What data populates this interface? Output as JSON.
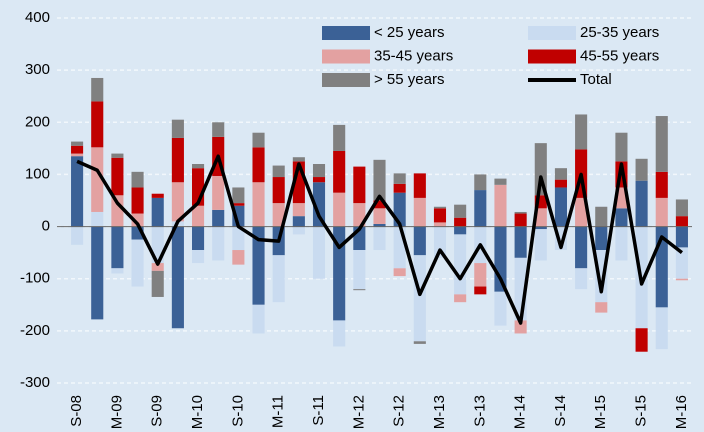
{
  "chart_data": {
    "type": "stacked-bar-line",
    "categories": [
      "S-08",
      null,
      "M-09",
      null,
      "S-09",
      null,
      "M-10",
      null,
      "S-10",
      null,
      "M-11",
      null,
      "S-11",
      null,
      "M-12",
      null,
      "S-12",
      null,
      "M-13",
      null,
      "S-13",
      null,
      "M-14",
      null,
      "S-14",
      null,
      "M-15",
      null,
      "S-15",
      null,
      "M-16"
    ],
    "series": [
      {
        "name": "< 25 years",
        "color": "#3b6196",
        "values": [
          135,
          -178,
          -80,
          -25,
          55,
          -195,
          -45,
          32,
          40,
          -150,
          -55,
          20,
          85,
          -180,
          -45,
          5,
          65,
          -55,
          0,
          -15,
          70,
          -125,
          -60,
          -5,
          75,
          -80,
          -45,
          35,
          88,
          -155,
          -40
        ]
      },
      {
        "name": "25-35 years",
        "color": "#c9dbf0",
        "values": [
          -35,
          28,
          -10,
          -90,
          -70,
          10,
          -25,
          -65,
          -45,
          -55,
          -90,
          -15,
          -100,
          -50,
          -75,
          -45,
          -80,
          -165,
          -60,
          -115,
          -70,
          -65,
          -120,
          -60,
          -45,
          -40,
          -100,
          -65,
          -195,
          -80,
          -60
        ]
      },
      {
        "name": "35-45 years",
        "color": "#e3a1a1",
        "values": [
          5,
          124,
          60,
          25,
          -15,
          75,
          40,
          65,
          -28,
          85,
          45,
          25,
          0,
          65,
          45,
          30,
          -15,
          55,
          8,
          -15,
          -45,
          80,
          -25,
          35,
          0,
          55,
          -20,
          40,
          0,
          55,
          -3
        ]
      },
      {
        "name": "45-55 years",
        "color": "#c00000",
        "values": [
          15,
          88,
          72,
          50,
          8,
          85,
          72,
          75,
          5,
          67,
          50,
          80,
          10,
          80,
          70,
          15,
          17,
          47,
          27,
          17,
          -15,
          0,
          25,
          25,
          15,
          93,
          0,
          50,
          -45,
          50,
          20
        ]
      },
      {
        "name": "> 55 years",
        "color": "#808080",
        "values": [
          8,
          45,
          8,
          30,
          -50,
          35,
          8,
          28,
          30,
          28,
          22,
          8,
          25,
          50,
          -2,
          78,
          20,
          -5,
          3,
          25,
          30,
          12,
          3,
          100,
          22,
          67,
          38,
          55,
          42,
          107,
          32
        ]
      },
      {
        "name": "Total",
        "color": "#000000",
        "line": true,
        "values": [
          125,
          108,
          45,
          5,
          -72,
          10,
          45,
          135,
          0,
          -25,
          -28,
          120,
          20,
          -40,
          -5,
          58,
          5,
          -130,
          -45,
          -100,
          -35,
          -100,
          -185,
          95,
          -40,
          100,
          -125,
          120,
          -110,
          -20,
          -50
        ]
      }
    ],
    "ylim": [
      -300,
      400
    ],
    "yticks": [
      -300,
      -200,
      -100,
      0,
      100,
      200,
      300,
      400
    ],
    "grid": true,
    "legend": "upper right"
  }
}
